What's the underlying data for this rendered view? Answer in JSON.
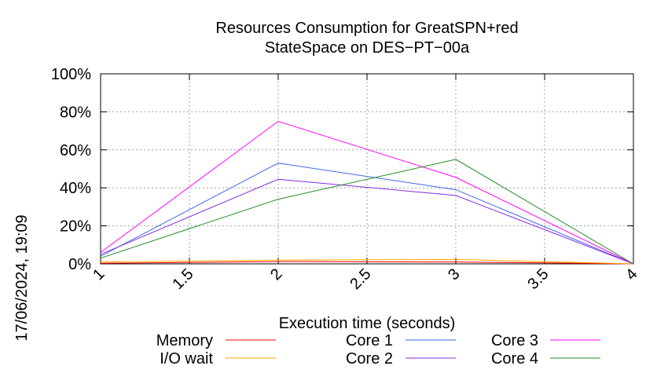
{
  "chart_data": {
    "type": "line",
    "title": [
      "Resources Consumption for GreatSPN+red",
      "StateSpace on DES−PT−00a"
    ],
    "xlabel": "Execution time (seconds)",
    "ylabel": "",
    "xlim": [
      1,
      4
    ],
    "ylim": [
      0,
      100
    ],
    "xticks": [
      1,
      1.5,
      2,
      2.5,
      3,
      3.5,
      4
    ],
    "xtick_labels": [
      "1",
      "1.5",
      "2",
      "2.5",
      "3",
      "3.5",
      "4"
    ],
    "yticks": [
      0,
      20,
      40,
      60,
      80,
      100
    ],
    "ytick_labels": [
      "0%",
      "20%",
      "40%",
      "60%",
      "80%",
      "100%"
    ],
    "grid": true,
    "legend_position": "bottom",
    "timestamp": "17/06/2024, 19:09",
    "x": [
      1,
      2,
      3,
      4
    ],
    "series": [
      {
        "name": "Memory",
        "color": "#ff0000",
        "values": [
          0.3,
          1.2,
          1.0,
          0
        ]
      },
      {
        "name": "I/O wait",
        "color": "#ffa500",
        "values": [
          1.0,
          2.0,
          2.3,
          0
        ]
      },
      {
        "name": "Core 1",
        "color": "#4169e1",
        "values": [
          4,
          53,
          39,
          0
        ]
      },
      {
        "name": "Core 2",
        "color": "#8a2be2",
        "values": [
          5,
          44.5,
          36,
          0
        ]
      },
      {
        "name": "Core 3",
        "color": "#ff00ff",
        "values": [
          6,
          75,
          45.5,
          0
        ]
      },
      {
        "name": "Core 4",
        "color": "#228b22",
        "values": [
          3,
          34,
          55,
          0
        ]
      }
    ]
  }
}
